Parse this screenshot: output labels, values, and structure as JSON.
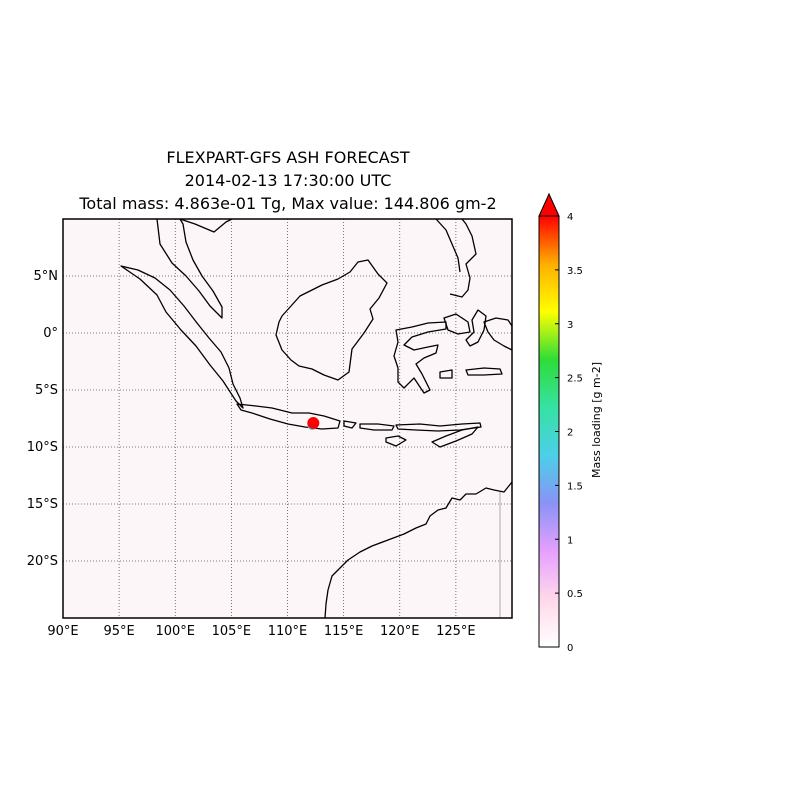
{
  "title": {
    "line1": "FLEXPART-GFS ASH FORECAST",
    "line2": "2014-02-13  17:30:00 UTC",
    "line3": "Total mass: 4.863e-01 Tg, Max value: 144.806 gm-2"
  },
  "map": {
    "lon_range": [
      90,
      130
    ],
    "lat_range": [
      -25,
      10
    ],
    "lon_ticks": [
      {
        "value": 90,
        "label": "90°E"
      },
      {
        "value": 95,
        "label": "95°E"
      },
      {
        "value": 100,
        "label": "100°E"
      },
      {
        "value": 105,
        "label": "105°E"
      },
      {
        "value": 110,
        "label": "110°E"
      },
      {
        "value": 115,
        "label": "115°E"
      },
      {
        "value": 120,
        "label": "120°E"
      },
      {
        "value": 125,
        "label": "125°E"
      }
    ],
    "lat_ticks": [
      {
        "value": 5,
        "label": "5°N"
      },
      {
        "value": 0,
        "label": "0°"
      },
      {
        "value": -5,
        "label": "5°S"
      },
      {
        "value": -10,
        "label": "10°S"
      },
      {
        "value": -15,
        "label": "15°S"
      },
      {
        "value": -20,
        "label": "20°S"
      }
    ],
    "grid": "dotted",
    "background_color": "#fdf6f8",
    "ash_source": {
      "lon": 112.3,
      "lat": -7.9,
      "color": "#ff0000"
    }
  },
  "colorbar": {
    "label": "Mass loading [g m-2]",
    "min": 0,
    "max": 4,
    "ticks": [
      "0",
      "0.5",
      "1",
      "1.5",
      "2",
      "2.5",
      "3",
      "3.5",
      "4"
    ],
    "extend": "max",
    "colors": [
      "#ffffff",
      "#ffd8ea",
      "#e6a0ff",
      "#8a93f5",
      "#4ccfe8",
      "#36e2a4",
      "#2edd38",
      "#ffff00",
      "#ffae00",
      "#ff0000"
    ]
  }
}
